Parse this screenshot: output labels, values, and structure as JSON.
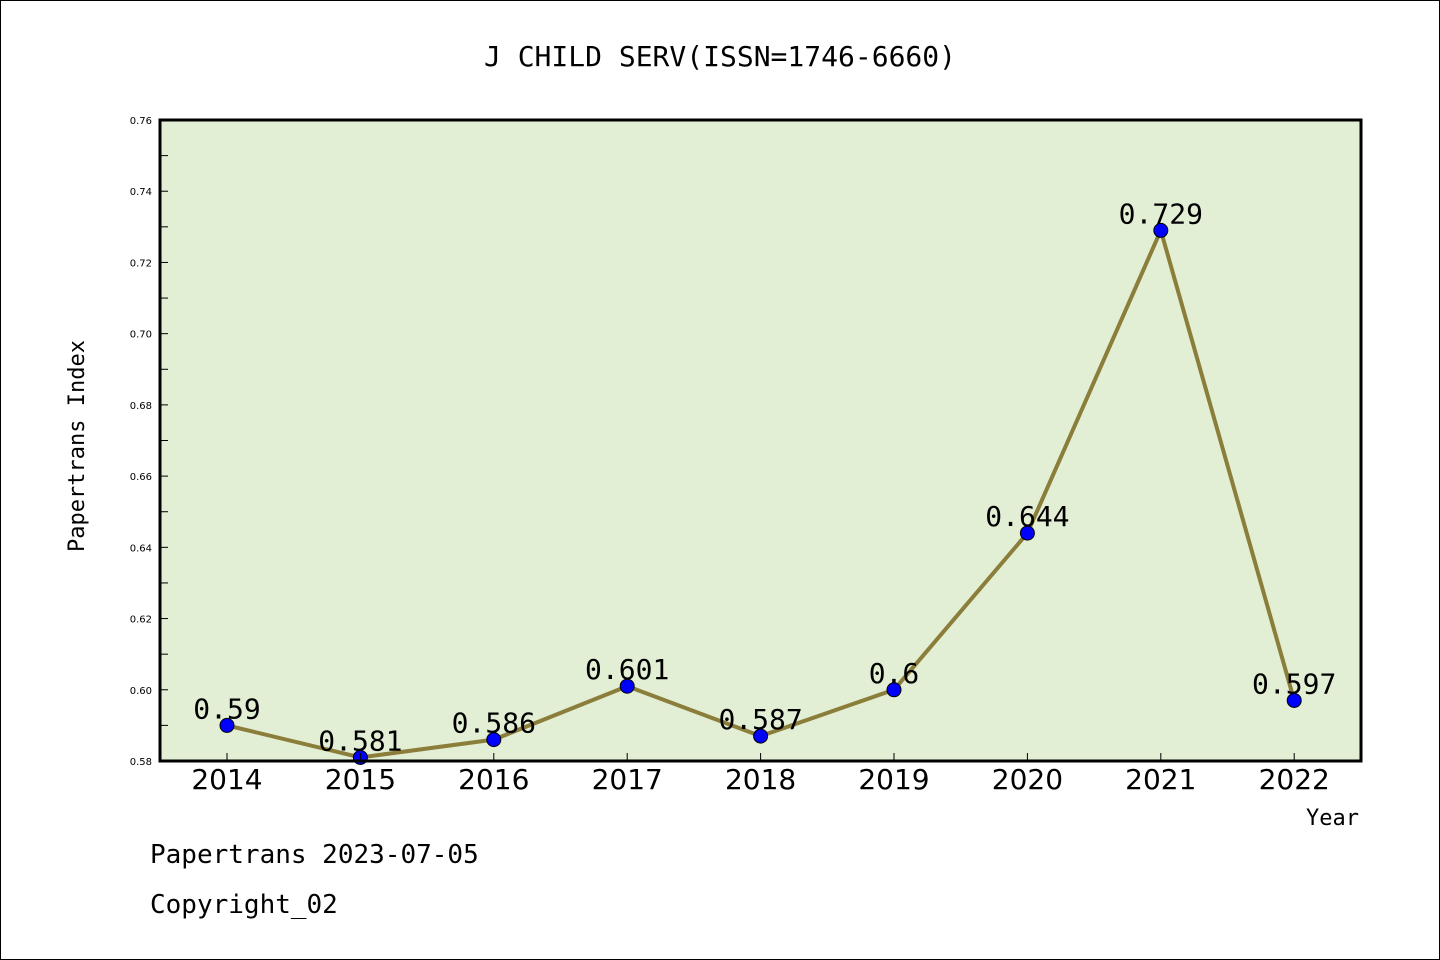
{
  "chart_data": {
    "type": "line",
    "title": "J CHILD SERV(ISSN=1746-6660)",
    "xlabel": "Year",
    "ylabel": "Papertrans Index",
    "categories": [
      "2014",
      "2015",
      "2016",
      "2017",
      "2018",
      "2019",
      "2020",
      "2021",
      "2022"
    ],
    "values": [
      0.59,
      0.581,
      0.586,
      0.601,
      0.587,
      0.6,
      0.644,
      0.729,
      0.597
    ],
    "data_labels": [
      "0.59",
      "0.581",
      "0.586",
      "0.601",
      "0.587",
      "0.6",
      "0.644",
      "0.729",
      "0.597"
    ],
    "yticks": [
      0.58,
      0.6,
      0.62,
      0.64,
      0.66,
      0.68,
      0.7,
      0.72,
      0.74,
      0.76
    ],
    "ytick_labels": [
      "0.58",
      "0.60",
      "0.62",
      "0.64",
      "0.66",
      "0.68",
      "0.70",
      "0.72",
      "0.74",
      "0.76"
    ],
    "ylim": [
      0.58,
      0.76
    ],
    "grid": false,
    "colors": {
      "plot_background": "#e2efd5",
      "line": "#8b7d3a",
      "marker": "#0000ff"
    }
  },
  "footer": {
    "line1": "Papertrans 2023-07-05",
    "line2": "Copyright_02"
  }
}
